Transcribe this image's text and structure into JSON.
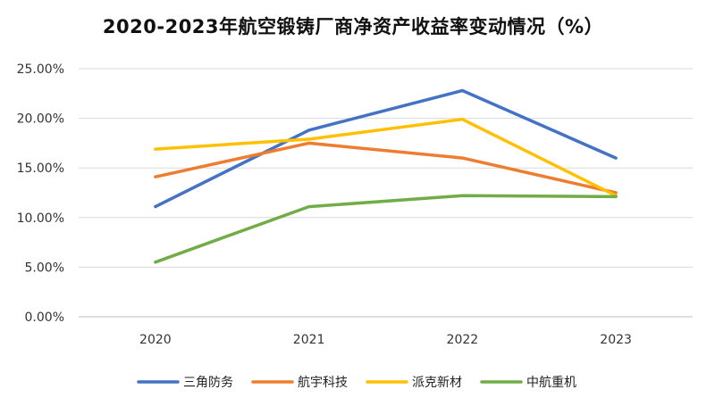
{
  "chart_data": {
    "type": "line",
    "title": "2020-2023年航空锻铸厂商净资产收益率变动情况（%）",
    "categories": [
      "2020",
      "2021",
      "2022",
      "2023"
    ],
    "y_tick_labels": [
      "0.00%",
      "5.00%",
      "10.00%",
      "15.00%",
      "20.00%",
      "25.00%"
    ],
    "ylim": [
      0,
      25
    ],
    "grid": true,
    "legend_position": "bottom",
    "series": [
      {
        "name": "三角防务",
        "color": "#4472C4",
        "values": [
          11.1,
          18.8,
          22.8,
          16.0
        ]
      },
      {
        "name": "航宇科技",
        "color": "#ED7D31",
        "values": [
          14.1,
          17.5,
          16.0,
          12.5
        ]
      },
      {
        "name": "派克新材",
        "color": "#FFC000",
        "values": [
          16.9,
          17.9,
          19.9,
          12.2
        ]
      },
      {
        "name": "中航重机",
        "color": "#70AD47",
        "values": [
          5.5,
          11.1,
          12.2,
          12.1
        ]
      }
    ]
  }
}
